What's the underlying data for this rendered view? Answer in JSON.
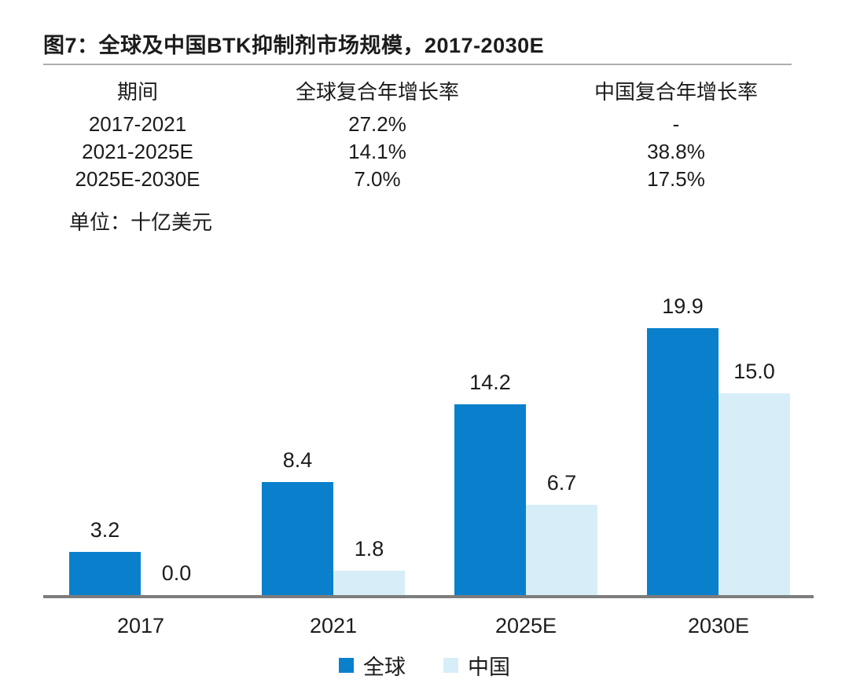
{
  "title": "图7：全球及中国BTK抑制剂市场规模，2017-2030E",
  "unit_label": "单位：十亿美元",
  "cagr_table": {
    "headers": [
      "期间",
      "全球复合年增长率",
      "中国复合年增长率"
    ],
    "rows": [
      [
        "2017-2021",
        "27.2%",
        "-"
      ],
      [
        "2021-2025E",
        "14.1%",
        "38.8%"
      ],
      [
        "2025E-2030E",
        "7.0%",
        "17.5%"
      ]
    ]
  },
  "chart_data": {
    "type": "bar",
    "title": "全球及中国BTK抑制剂市场规模",
    "unit": "十亿美元",
    "categories": [
      "2017",
      "2021",
      "2025E",
      "2030E"
    ],
    "series": [
      {
        "name": "全球",
        "color": "#0A80CC",
        "values": [
          3.2,
          8.4,
          14.2,
          19.9
        ]
      },
      {
        "name": "中国",
        "color": "#D7EEF9",
        "values": [
          0.0,
          1.8,
          6.7,
          15.0
        ]
      }
    ],
    "ylim": [
      0,
      21
    ],
    "grid": false,
    "value_labels_shown": true,
    "legend_position": "bottom"
  },
  "colors": {
    "global_series": "#0A80CC",
    "china_series": "#D7EEF9",
    "axis_line": "#7d7d7d",
    "title_rule": "#aeaeae",
    "text": "#1c1c1c"
  }
}
